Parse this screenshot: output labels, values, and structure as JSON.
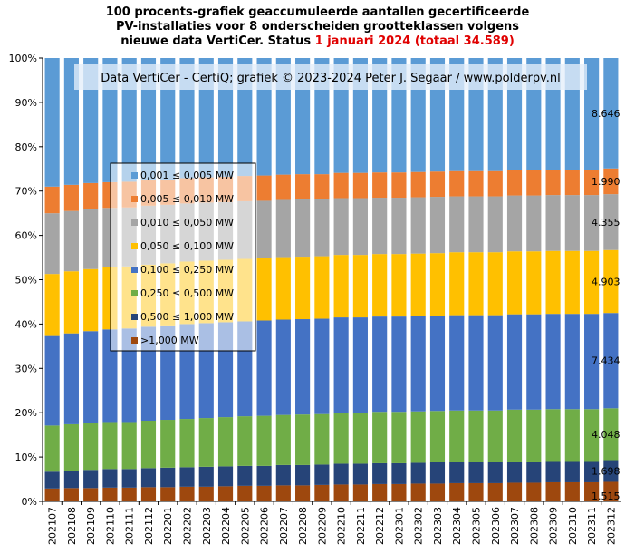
{
  "title": {
    "line1": "100 procents-grafiek geaccumuleerde aantallen gecertificeerde",
    "line2": "PV-installaties voor 8 onderscheiden grootteklassen volgens",
    "line3a": "nieuwe data VertiCer. Status ",
    "line3b": "1 januari 2024 (totaal 34.589)"
  },
  "credit": "Data VertiCer - CertiQ; grafiek © 2023-2024  Peter J. Segaar / www.polderpv.nl",
  "colors": {
    "c8": "#5b9bd5",
    "c7": "#ed7d31",
    "c6": "#a5a5a5",
    "c5": "#ffc000",
    "c4": "#4472c4",
    "c3": "#70ad47",
    "c2": "#264478",
    "c1": "#9e480e"
  },
  "chart_data": {
    "type": "bar",
    "stacked": "percent",
    "ylim": [
      0,
      100
    ],
    "yticks": [
      "0%",
      "10%",
      "20%",
      "30%",
      "40%",
      "50%",
      "60%",
      "70%",
      "80%",
      "90%",
      "100%"
    ],
    "legend_position": "upper-left inside plot",
    "categories": [
      "202107",
      "202108",
      "202109",
      "202110",
      "202111",
      "202112",
      "202201",
      "202202",
      "202203",
      "202204",
      "202205",
      "202206",
      "202207",
      "202208",
      "202209",
      "202210",
      "202211",
      "202212",
      "202301",
      "202302",
      "202303",
      "202304",
      "202305",
      "202306",
      "202307",
      "202308",
      "202309",
      "202310",
      "202311",
      "202312"
    ],
    "series": [
      {
        "key": "c1",
        "name": ">1,000 MW",
        "values": [
          2.9,
          3.0,
          3.0,
          3.1,
          3.1,
          3.2,
          3.2,
          3.3,
          3.3,
          3.4,
          3.5,
          3.5,
          3.6,
          3.6,
          3.7,
          3.8,
          3.8,
          3.9,
          3.9,
          4.0,
          4.0,
          4.1,
          4.1,
          4.1,
          4.2,
          4.2,
          4.3,
          4.3,
          4.3,
          4.4
        ]
      },
      {
        "key": "c2",
        "name": "0,500 ≤  1,000 MW",
        "values": [
          3.8,
          3.9,
          4.1,
          4.2,
          4.2,
          4.3,
          4.4,
          4.4,
          4.5,
          4.5,
          4.5,
          4.5,
          4.6,
          4.6,
          4.6,
          4.7,
          4.7,
          4.7,
          4.7,
          4.7,
          4.8,
          4.8,
          4.8,
          4.8,
          4.8,
          4.8,
          4.8,
          4.8,
          4.8,
          4.9
        ]
      },
      {
        "key": "c3",
        "name": "0,250 ≤  0,500 MW",
        "values": [
          10.4,
          10.5,
          10.5,
          10.6,
          10.6,
          10.7,
          10.8,
          10.9,
          11.0,
          11.1,
          11.2,
          11.3,
          11.3,
          11.4,
          11.4,
          11.5,
          11.5,
          11.6,
          11.6,
          11.6,
          11.6,
          11.6,
          11.6,
          11.6,
          11.7,
          11.7,
          11.7,
          11.7,
          11.7,
          11.7
        ]
      },
      {
        "key": "c4",
        "name": "0,100 ≤  0,250 MW",
        "values": [
          20.2,
          20.5,
          20.8,
          20.9,
          21.1,
          21.2,
          21.3,
          21.4,
          21.4,
          21.4,
          21.4,
          21.5,
          21.5,
          21.5,
          21.5,
          21.5,
          21.5,
          21.5,
          21.5,
          21.5,
          21.5,
          21.5,
          21.5,
          21.5,
          21.5,
          21.5,
          21.5,
          21.5,
          21.5,
          21.5
        ]
      },
      {
        "key": "c5",
        "name": "0,050 ≤  0,100 MW",
        "values": [
          14.0,
          14.0,
          14.0,
          14.0,
          14.0,
          14.0,
          14.0,
          14.1,
          14.1,
          14.1,
          14.1,
          14.1,
          14.1,
          14.1,
          14.1,
          14.1,
          14.1,
          14.1,
          14.1,
          14.1,
          14.1,
          14.2,
          14.2,
          14.2,
          14.2,
          14.2,
          14.2,
          14.2,
          14.2,
          14.2
        ]
      },
      {
        "key": "c6",
        "name": "0,010 ≤  0,050 MW",
        "values": [
          13.7,
          13.6,
          13.5,
          13.4,
          13.3,
          13.3,
          13.2,
          13.1,
          13.1,
          13.0,
          13.0,
          12.9,
          12.9,
          12.9,
          12.8,
          12.8,
          12.8,
          12.7,
          12.7,
          12.7,
          12.7,
          12.6,
          12.6,
          12.6,
          12.6,
          12.6,
          12.6,
          12.6,
          12.6,
          12.6
        ]
      },
      {
        "key": "c7",
        "name": "0,005 ≤  0,010 MW",
        "values": [
          6.0,
          5.9,
          5.9,
          5.8,
          5.8,
          5.8,
          5.7,
          5.7,
          5.7,
          5.7,
          5.7,
          5.7,
          5.7,
          5.7,
          5.7,
          5.7,
          5.7,
          5.7,
          5.7,
          5.7,
          5.7,
          5.7,
          5.7,
          5.7,
          5.7,
          5.7,
          5.7,
          5.7,
          5.7,
          5.8
        ]
      },
      {
        "key": "c8",
        "name": "0,001 ≤  0,005 MW",
        "values": [
          29.0,
          28.6,
          28.2,
          28.0,
          27.9,
          27.5,
          27.4,
          27.1,
          26.9,
          26.8,
          26.6,
          26.5,
          26.3,
          26.2,
          26.2,
          25.9,
          25.9,
          25.8,
          25.8,
          25.7,
          25.6,
          25.5,
          25.5,
          25.5,
          25.3,
          25.3,
          25.2,
          25.2,
          25.2,
          24.9
        ]
      }
    ],
    "end_labels": [
      {
        "key": "c1",
        "text": "1.515"
      },
      {
        "key": "c2",
        "text": "1.698"
      },
      {
        "key": "c3",
        "text": "4.048"
      },
      {
        "key": "c4",
        "text": "7.434"
      },
      {
        "key": "c5",
        "text": "4.903"
      },
      {
        "key": "c6",
        "text": "4.355"
      },
      {
        "key": "c7",
        "text": "1.990"
      },
      {
        "key": "c8",
        "text": "8.646"
      }
    ],
    "legend_order": [
      "c8",
      "c7",
      "c6",
      "c5",
      "c4",
      "c3",
      "c2",
      "c1"
    ]
  }
}
